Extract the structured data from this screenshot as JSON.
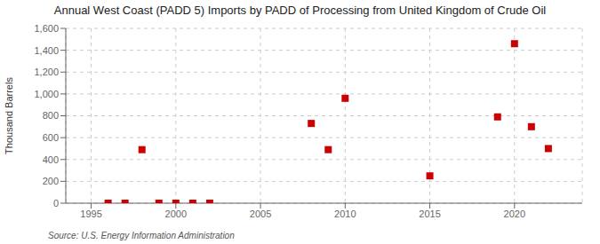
{
  "chart_data": {
    "type": "scatter",
    "title": "Annual West Coast (PADD 5) Imports by PADD of Processing from United Kingdom of Crude Oil",
    "y_label": "Thousand Barrels",
    "annotations": [
      "Source: U.S. Energy Information Administration"
    ],
    "x": [
      1996,
      1997,
      1998,
      1999,
      2000,
      2001,
      2002,
      2008,
      2009,
      2010,
      2015,
      2019,
      2020,
      2021,
      2022
    ],
    "values": [
      0,
      0,
      490,
      0,
      0,
      0,
      0,
      730,
      490,
      960,
      250,
      790,
      1460,
      700,
      500
    ],
    "color": "#cc0000",
    "marker": "square",
    "xlim": [
      1993.5,
      2024
    ],
    "xticks": [
      1995,
      2000,
      2005,
      2010,
      2015,
      2020
    ],
    "ylim": [
      0,
      1600
    ],
    "yticks": [
      0,
      200,
      400,
      600,
      800,
      {
        "value": 1000,
        "label": "1,000"
      },
      {
        "value": 1200,
        "label": "1,200"
      },
      {
        "value": 1400,
        "label": "1,400"
      },
      {
        "value": 1600,
        "label": "1,600"
      }
    ],
    "grid": true
  }
}
